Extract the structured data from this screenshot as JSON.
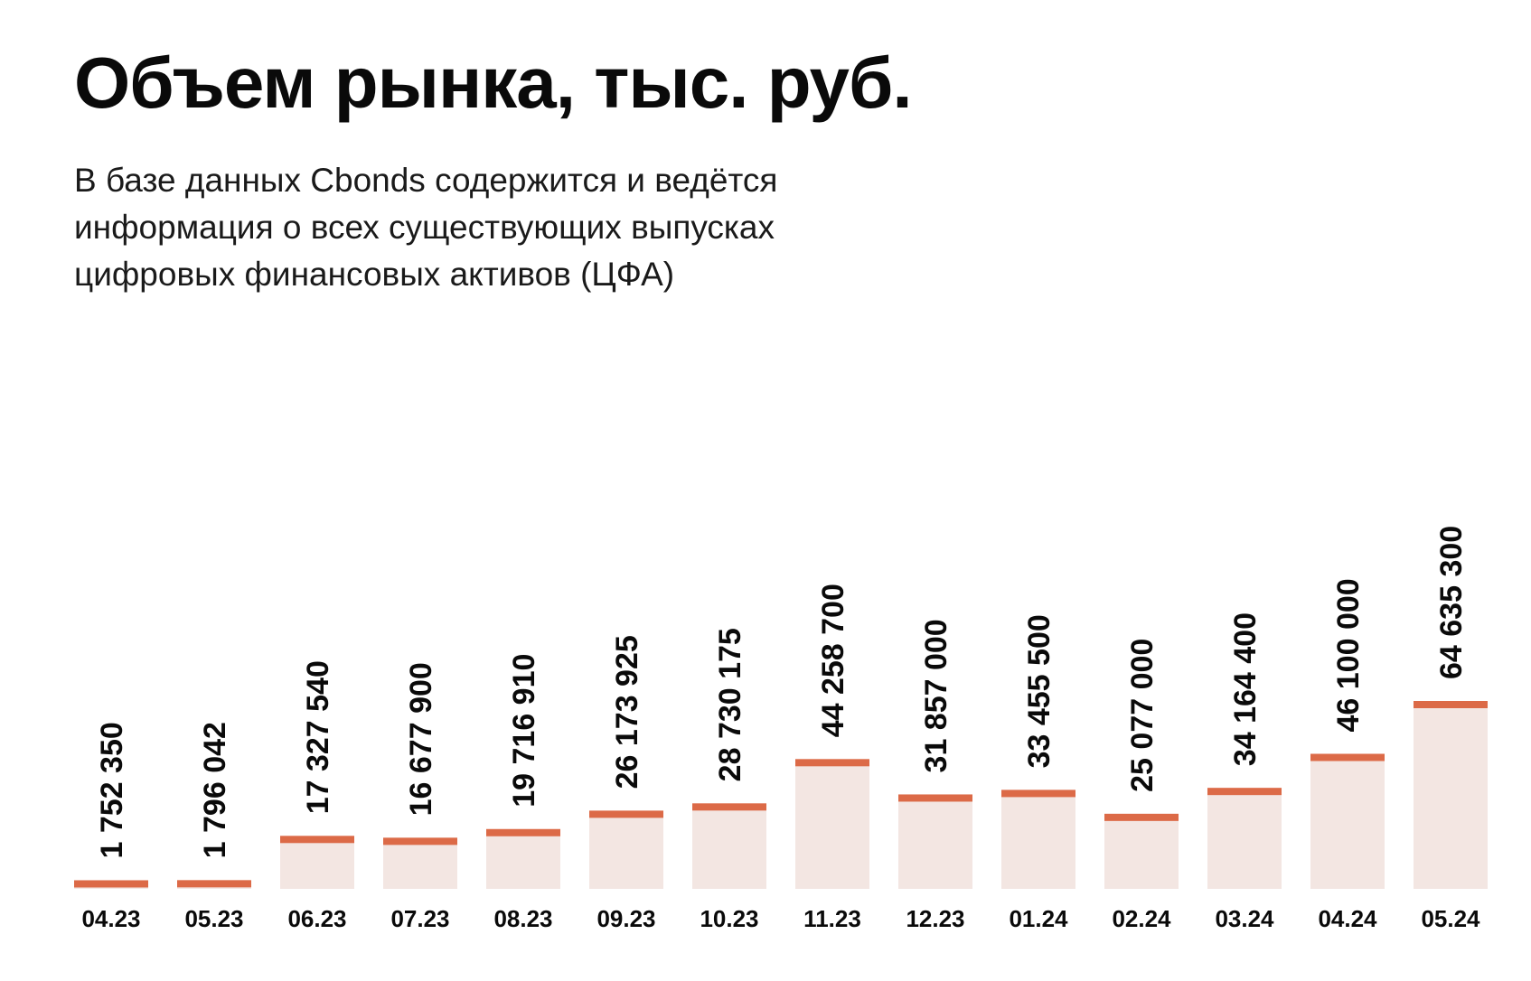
{
  "header": {
    "title": "Объем рынка, тыс. руб.",
    "subtitle_lines": [
      "В базе данных Cbonds содержится и ведётся",
      "информация о всех существующих выпусках",
      "цифровых финансовых активов (ЦФА)"
    ]
  },
  "colors": {
    "bar_fill": "#f3e6e2",
    "bar_cap": "#dc6a47",
    "text": "#0a0a0a"
  },
  "chart_data": {
    "type": "bar",
    "title": "Объем рынка, тыс. руб.",
    "categories": [
      "04.23",
      "05.23",
      "06.23",
      "07.23",
      "08.23",
      "09.23",
      "10.23",
      "11.23",
      "12.23",
      "01.24",
      "02.24",
      "03.24",
      "04.24",
      "05.24"
    ],
    "values": [
      1752350,
      1796042,
      17327540,
      16677900,
      19716910,
      26173925,
      28730175,
      44258700,
      31857000,
      33455500,
      25077000,
      34164400,
      46100000,
      64635300
    ],
    "value_labels": [
      "1 752 350",
      "1 796 042",
      "17 327 540",
      "16 677 900",
      "19 716 910",
      "26 173 925",
      "28 730 175",
      "44 258 700",
      "31 857 000",
      "33 455 500",
      "25 077 000",
      "34 164 400",
      "46 100 000",
      "64 635 300"
    ],
    "ylim": [
      0,
      70000000
    ],
    "grid": false,
    "legend": "none",
    "data_label_orientation": "vertical"
  }
}
